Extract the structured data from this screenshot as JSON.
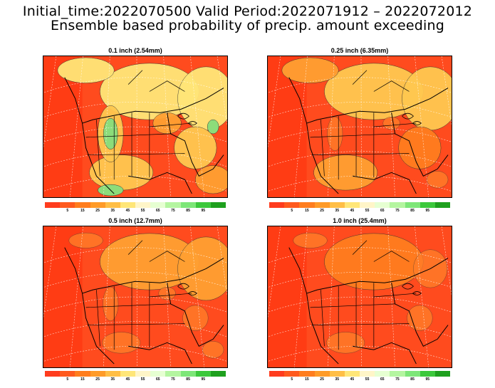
{
  "header": {
    "line1": "Initial_time:2022070500  Valid Period:2022071912 – 2022072012",
    "line2": "Ensemble based probability of precip. amount exceeding"
  },
  "colorbar": {
    "colors": [
      "#ff3c1e",
      "#ff5a1e",
      "#ff7d1e",
      "#ff9b28",
      "#ffbe46",
      "#ffe678",
      "#fff5c8",
      "#e6ffd2",
      "#b4f5a0",
      "#7de678",
      "#3cc83c",
      "#1ea01e"
    ],
    "labels": [
      "5",
      "15",
      "25",
      "35",
      "45",
      "55",
      "65",
      "75",
      "85",
      "95"
    ]
  },
  "panels": [
    {
      "title": "0.1 inch (2.54mm)",
      "wetness": 0.55
    },
    {
      "title": "0.25 inch (6.35mm)",
      "wetness": 0.3
    },
    {
      "title": "0.5 inch (12.7mm)",
      "wetness": 0.15
    },
    {
      "title": "1.0 inch (25.4mm)",
      "wetness": 0.05
    }
  ]
}
